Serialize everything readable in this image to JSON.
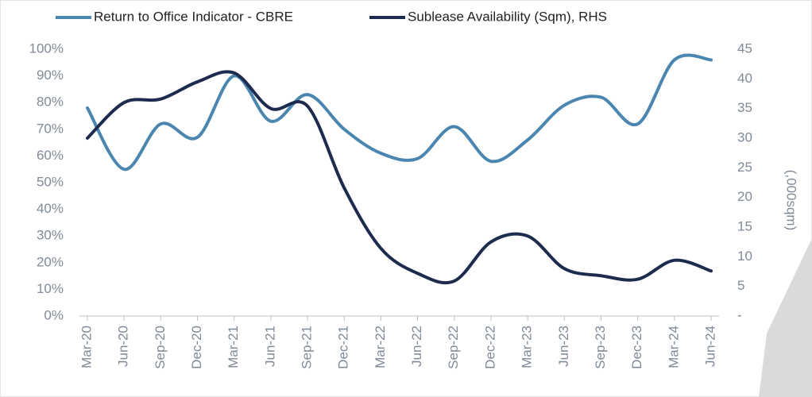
{
  "chart_data": {
    "type": "line",
    "categories": [
      "Mar-20",
      "Jun-20",
      "Sep-20",
      "Dec-20",
      "Mar-21",
      "Jun-21",
      "Sep-21",
      "Dec-21",
      "Mar-22",
      "Jun-22",
      "Sep-22",
      "Dec-22",
      "Mar-23",
      "Jun-23",
      "Sep-23",
      "Dec-23",
      "Mar-24",
      "Jun-24"
    ],
    "series": [
      {
        "name": "Return to Office Indicator - CBRE",
        "color": "#4a86b0",
        "axis": "y",
        "values": [
          78,
          55,
          72,
          67,
          90,
          73,
          83,
          70,
          61,
          59,
          71,
          58,
          66,
          79,
          82,
          72,
          96,
          96
        ]
      },
      {
        "name": "Sublease Availability (Sqm), RHS",
        "color": "#1d2b4f",
        "axis": "y2",
        "values": [
          30,
          36,
          36.6,
          39.5,
          41,
          35,
          35.4,
          21.6,
          11.4,
          7.2,
          5.9,
          12.5,
          13.5,
          8,
          6.8,
          6.2,
          9.4,
          7.6
        ]
      }
    ],
    "ylim": [
      0,
      100
    ],
    "yticks": [
      {
        "value": 0,
        "label": "0%"
      },
      {
        "value": 10,
        "label": "10%"
      },
      {
        "value": 20,
        "label": "20%"
      },
      {
        "value": 30,
        "label": "30%"
      },
      {
        "value": 40,
        "label": "40%"
      },
      {
        "value": 50,
        "label": "50%"
      },
      {
        "value": 60,
        "label": "60%"
      },
      {
        "value": 70,
        "label": "70%"
      },
      {
        "value": 80,
        "label": "80%"
      },
      {
        "value": 90,
        "label": "90%"
      },
      {
        "value": 100,
        "label": "100%"
      }
    ],
    "y2lim": [
      0,
      45
    ],
    "y2ticks": [
      {
        "value": 0,
        "label": "-"
      },
      5,
      10,
      15,
      20,
      25,
      30,
      35,
      40,
      45
    ],
    "y2label": "(,000sqm)",
    "grid": false,
    "legend": "top"
  }
}
